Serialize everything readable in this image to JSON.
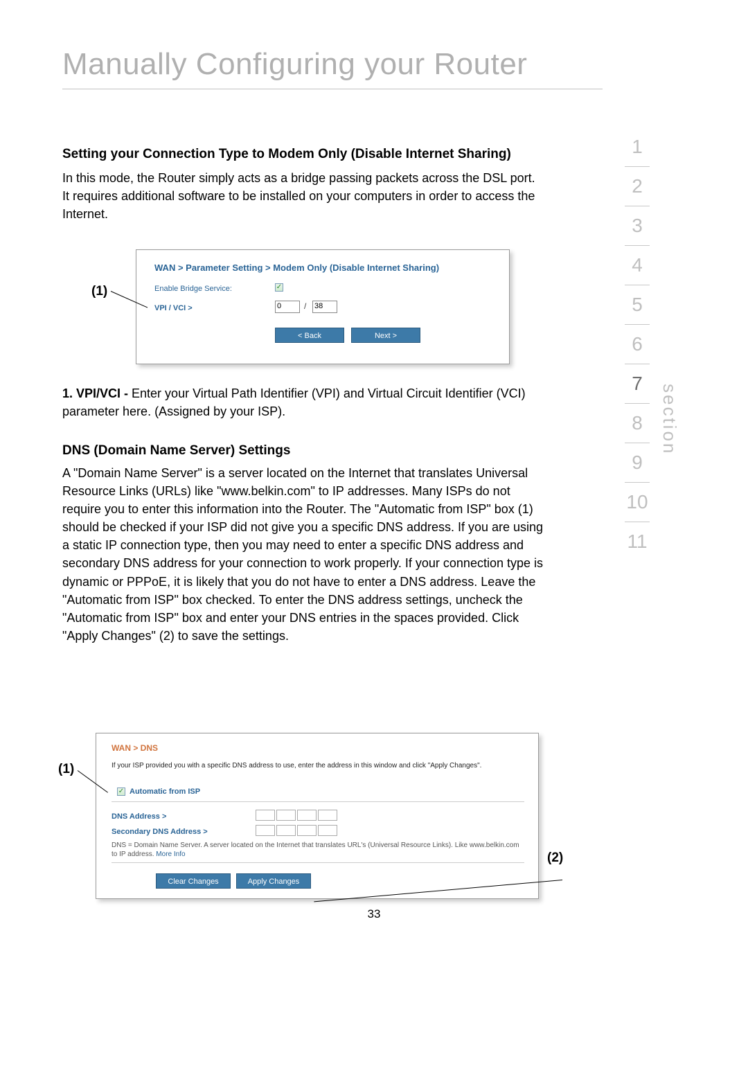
{
  "page": {
    "title": "Manually Configuring your Router",
    "number": "33"
  },
  "section_nav": {
    "label": "section",
    "items": [
      "1",
      "2",
      "3",
      "4",
      "5",
      "6",
      "7",
      "8",
      "9",
      "10",
      "11"
    ],
    "active": "7"
  },
  "modem_only": {
    "heading": "Setting your Connection Type to Modem Only (Disable Internet Sharing)",
    "body": "In this mode, the Router simply acts as a bridge passing packets across the DSL port. It requires additional software to be installed on your computers in order to access the Internet.",
    "screenshot": {
      "breadcrumb": "WAN > Parameter Setting > Modem Only (Disable Internet Sharing)",
      "enable_label": "Enable Bridge Service:",
      "enable_checked": true,
      "vpi_label": "VPI / VCI >",
      "vpi_value": "0",
      "vci_value": "38",
      "back_label": "< Back",
      "next_label": "Next >"
    },
    "callout_1": "(1)",
    "note_label": "1. VPI/VCI - ",
    "note_body": "Enter your Virtual Path Identifier (VPI) and Virtual Circuit Identifier (VCI) parameter here. (Assigned by your ISP)."
  },
  "dns": {
    "heading": "DNS (Domain Name Server) Settings",
    "body": "A \"Domain Name Server\" is a server located on the Internet that translates Universal Resource Links (URLs) like \"www.belkin.com\" to IP addresses. Many ISPs do not require you to enter this information into the Router. The \"Automatic from ISP\" box (1) should be checked if your ISP did not give you a specific DNS address. If you are using a static IP connection type, then you may need to enter a specific DNS address and secondary DNS address for your connection to work properly. If your connection type is dynamic or PPPoE, it is likely that you do not have to enter a DNS address. Leave the \"Automatic from ISP\" box checked. To enter the DNS address settings, uncheck the \"Automatic from ISP\" box and enter your DNS entries in the spaces provided. Click \"Apply Changes\" (2) to save the settings.",
    "screenshot": {
      "breadcrumb": "WAN > DNS",
      "description": "If your ISP provided you with a specific DNS address to use, enter the address in this window and click \"Apply Changes\".",
      "auto_label": "Automatic from ISP",
      "auto_checked": true,
      "dns_label": "DNS Address >",
      "secondary_label": "Secondary DNS Address >",
      "note": "DNS = Domain Name Server. A server located on the Internet that translates URL's (Universal Resource Links). Like www.belkin.com to IP address. ",
      "more_info": "More Info",
      "clear_label": "Clear Changes",
      "apply_label": "Apply Changes"
    },
    "callout_1": "(1)",
    "callout_2": "(2)"
  },
  "colors": {
    "title_grey": "#b0b0b0",
    "link_blue": "#2a6496",
    "btn_blue": "#3d7aa8",
    "orange": "#d1743e"
  }
}
